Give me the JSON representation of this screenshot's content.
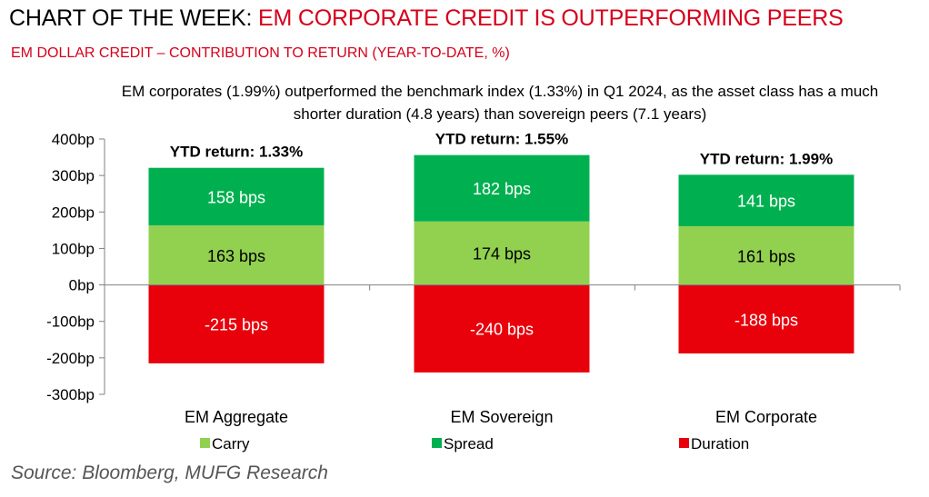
{
  "title": {
    "prefix": "CHART OF THE WEEK: ",
    "highlight": "EM CORPORATE CREDIT IS OUTPERFORMING PEERS"
  },
  "subtitle": "EM DOLLAR CREDIT – CONTRIBUTION TO RETURN (YEAR-TO-DATE, %)",
  "note": "EM corporates (1.99%) outperformed the benchmark index (1.33%) in Q1 2024, as the asset class has a much shorter duration (4.8 years) than sovereign peers (7.1 years)",
  "source": "Source: Bloomberg, MUFG Research",
  "chart_data": {
    "type": "bar",
    "stacked": true,
    "categories": [
      "EM Aggregate",
      "EM Sovereign",
      "EM Corporate"
    ],
    "series": [
      {
        "name": "Carry",
        "values": [
          163,
          174,
          161
        ],
        "labels": [
          "163 bps",
          "174 bps",
          "161 bps"
        ],
        "color": "#92d050"
      },
      {
        "name": "Spread",
        "values": [
          158,
          182,
          141
        ],
        "labels": [
          "158 bps",
          "182 bps",
          "141 bps"
        ],
        "color": "#00b050"
      },
      {
        "name": "Duration",
        "values": [
          -215,
          -240,
          -188
        ],
        "labels": [
          "-215 bps",
          "-240 bps",
          "-188 bps"
        ],
        "color": "#e8000b"
      }
    ],
    "totals": [
      "YTD return: 1.33%",
      "YTD return: 1.55%",
      "YTD return: 1.99%"
    ],
    "ylim": [
      -300,
      400
    ],
    "yticks": [
      400,
      300,
      200,
      100,
      0,
      -100,
      -200,
      -300
    ],
    "ytick_labels": [
      "400bp",
      "300bp",
      "200bp",
      "100bp",
      "0bp",
      "-100bp",
      "-200bp",
      "-300bp"
    ],
    "xlabel": "",
    "ylabel": "",
    "grid": false,
    "legend_position": "bottom"
  }
}
